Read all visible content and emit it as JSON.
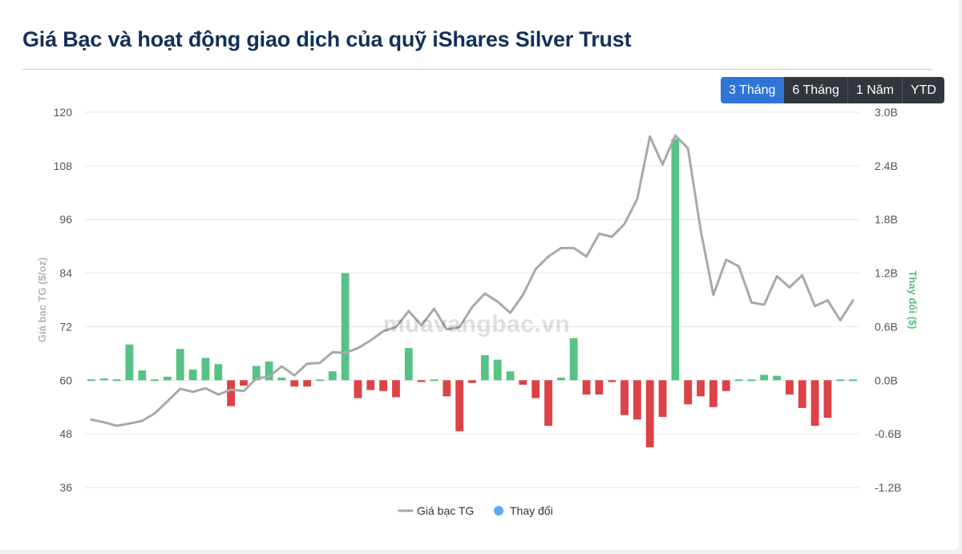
{
  "page": {
    "title": "Giá Bạc và hoạt động giao dịch của quỹ iShares Silver Trust",
    "watermark": "muavangbac.vn"
  },
  "range_selector": {
    "options": [
      "3 Tháng",
      "6 Tháng",
      "1 Năm",
      "YTD"
    ],
    "selected": "3 Tháng"
  },
  "colors": {
    "price_line": "#a9a9ab",
    "bar_positive": "#55c383",
    "bar_negative": "#dc4246",
    "legend_change_dot": "#5aabf3",
    "y2_label": "#5bbf83",
    "y1_label": "#b4b4b4",
    "grid": "#e6e6e6"
  },
  "chart_data": {
    "type": "bar+line",
    "xlabel": "",
    "ylabel": "Giá bạc TG ($/oz)",
    "y2label": "Thay đổi ($)",
    "ylim": [
      36,
      120
    ],
    "y2lim": [
      -1.2,
      3.0
    ],
    "y_ticks": [
      36,
      48,
      60,
      72,
      84,
      96,
      108,
      120
    ],
    "y_tick_labels": [
      "36",
      "48",
      "60",
      "72",
      "84",
      "96",
      "108",
      "120"
    ],
    "y2_ticks": [
      -1.2,
      -0.6,
      0,
      0.6,
      1.2,
      1.8,
      2.4,
      3.0
    ],
    "y2_tick_labels": [
      "-1.2B",
      "-0.6B",
      "0.0B",
      "0.6B",
      "1.2B",
      "1.8B",
      "2.4B",
      "3.0B"
    ],
    "grid": true,
    "legend_position": "bottom-center",
    "series": [
      {
        "name": "Giá bạc TG",
        "type": "line",
        "axis": "left",
        "values": [
          51.2,
          50.6,
          49.8,
          50.3,
          50.9,
          52.6,
          55.3,
          58.1,
          57.4,
          58.2,
          56.8,
          57.9,
          57.6,
          60.4,
          60.8,
          63.1,
          61.1,
          63.7,
          63.9,
          66.3,
          66.1,
          67.2,
          68.9,
          71.0,
          71.9,
          75.5,
          72.3,
          76.0,
          71.4,
          71.9,
          76.4,
          79.4,
          77.6,
          75.1,
          79.1,
          84.9,
          87.7,
          89.6,
          89.6,
          87.7,
          92.8,
          92.1,
          95.0,
          100.6,
          114.6,
          108.3,
          114.8,
          111.9,
          93.6,
          79.1,
          87.0,
          85.5,
          77.4,
          76.9,
          83.3,
          80.8,
          83.5,
          76.6,
          77.9,
          73.4,
          77.9
        ]
      },
      {
        "name": "Thay đổi",
        "type": "bar",
        "axis": "right",
        "values": [
          0.01,
          0.02,
          0.01,
          0.4,
          0.11,
          0.0,
          0.04,
          0.35,
          0.12,
          0.25,
          0.18,
          -0.29,
          -0.06,
          0.16,
          0.21,
          0.03,
          -0.07,
          -0.07,
          0.0,
          0.1,
          1.2,
          -0.2,
          -0.11,
          -0.12,
          -0.19,
          0.36,
          -0.02,
          0.0,
          -0.18,
          -0.57,
          -0.03,
          0.28,
          0.23,
          0.1,
          -0.05,
          -0.2,
          -0.51,
          0.03,
          0.47,
          -0.16,
          -0.16,
          -0.02,
          -0.39,
          -0.44,
          -0.75,
          -0.41,
          2.7,
          -0.27,
          -0.18,
          -0.3,
          -0.12,
          0.0,
          0.0,
          0.06,
          0.05,
          -0.16,
          -0.31,
          -0.51,
          -0.42,
          0.0,
          0.0
        ]
      }
    ]
  }
}
